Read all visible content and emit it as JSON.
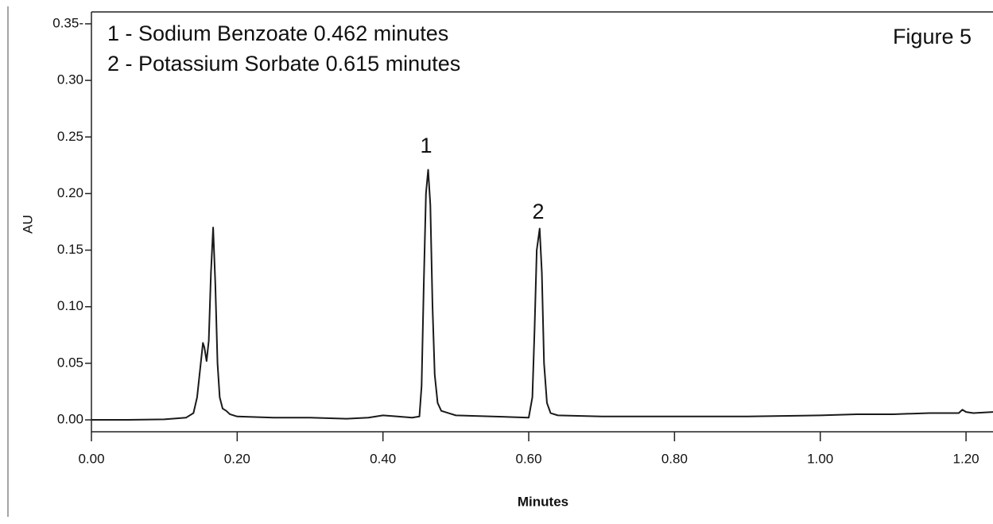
{
  "chart_data": {
    "type": "line",
    "legend_lines": [
      "1 - Sodium Benzoate  0.462 minutes",
      "2 - Potassium Sorbate  0.615 minutes"
    ],
    "figure_label": "Figure 5",
    "x_label": "Minutes",
    "y_label": "AU",
    "annotations": [
      "1",
      "2"
    ],
    "x": [
      0,
      0.05,
      0.1,
      0.13,
      0.14,
      0.145,
      0.15,
      0.153,
      0.155,
      0.158,
      0.161,
      0.164,
      0.167,
      0.17,
      0.173,
      0.176,
      0.18,
      0.185,
      0.19,
      0.2,
      0.25,
      0.3,
      0.35,
      0.38,
      0.4,
      0.42,
      0.44,
      0.45,
      0.453,
      0.456,
      0.459,
      0.462,
      0.465,
      0.468,
      0.471,
      0.475,
      0.48,
      0.49,
      0.5,
      0.55,
      0.6,
      0.605,
      0.608,
      0.611,
      0.615,
      0.618,
      0.621,
      0.625,
      0.63,
      0.64,
      0.7,
      0.8,
      0.9,
      1.0,
      1.05,
      1.1,
      1.15,
      1.19,
      1.195,
      1.2,
      1.21,
      1.237
    ],
    "series": [
      {
        "color": "#1a1a1a",
        "values": [
          0,
          0,
          0.0005,
          0.002,
          0.006,
          0.02,
          0.05,
          0.068,
          0.064,
          0.052,
          0.07,
          0.13,
          0.17,
          0.12,
          0.05,
          0.02,
          0.01,
          0.008,
          0.005,
          0.003,
          0.002,
          0.002,
          0.001,
          0.002,
          0.004,
          0.003,
          0.002,
          0.003,
          0.03,
          0.12,
          0.2,
          0.221,
          0.19,
          0.1,
          0.04,
          0.015,
          0.008,
          0.006,
          0.004,
          0.003,
          0.002,
          0.02,
          0.08,
          0.15,
          0.169,
          0.13,
          0.05,
          0.015,
          0.006,
          0.004,
          0.003,
          0.003,
          0.003,
          0.004,
          0.005,
          0.005,
          0.006,
          0.006,
          0.009,
          0.007,
          0.006,
          0.007
        ]
      }
    ],
    "xlim": [
      0,
      1.237
    ],
    "ylim": [
      -0.0105,
      0.3584
    ],
    "xticks": [
      {
        "value": 0,
        "label": "0.00"
      },
      {
        "value": 0.2,
        "label": "0.20"
      },
      {
        "value": 0.4,
        "label": "0.40"
      },
      {
        "value": 0.6,
        "label": "0.60"
      },
      {
        "value": 0.8,
        "label": "0.80"
      },
      {
        "value": 1.0,
        "label": "1.00"
      },
      {
        "value": 1.2,
        "label": "1.20"
      }
    ],
    "yticks": [
      {
        "value": 0,
        "label": "0.00"
      },
      {
        "value": 0.05,
        "label": "0.05"
      },
      {
        "value": 0.1,
        "label": "0.10"
      },
      {
        "value": 0.15,
        "label": "0.15"
      },
      {
        "value": 0.2,
        "label": "0.20"
      },
      {
        "value": 0.25,
        "label": "0.25"
      },
      {
        "value": 0.3,
        "label": "0.30"
      },
      {
        "value": 0.35,
        "label": "0.35-"
      }
    ],
    "grid": false
  }
}
